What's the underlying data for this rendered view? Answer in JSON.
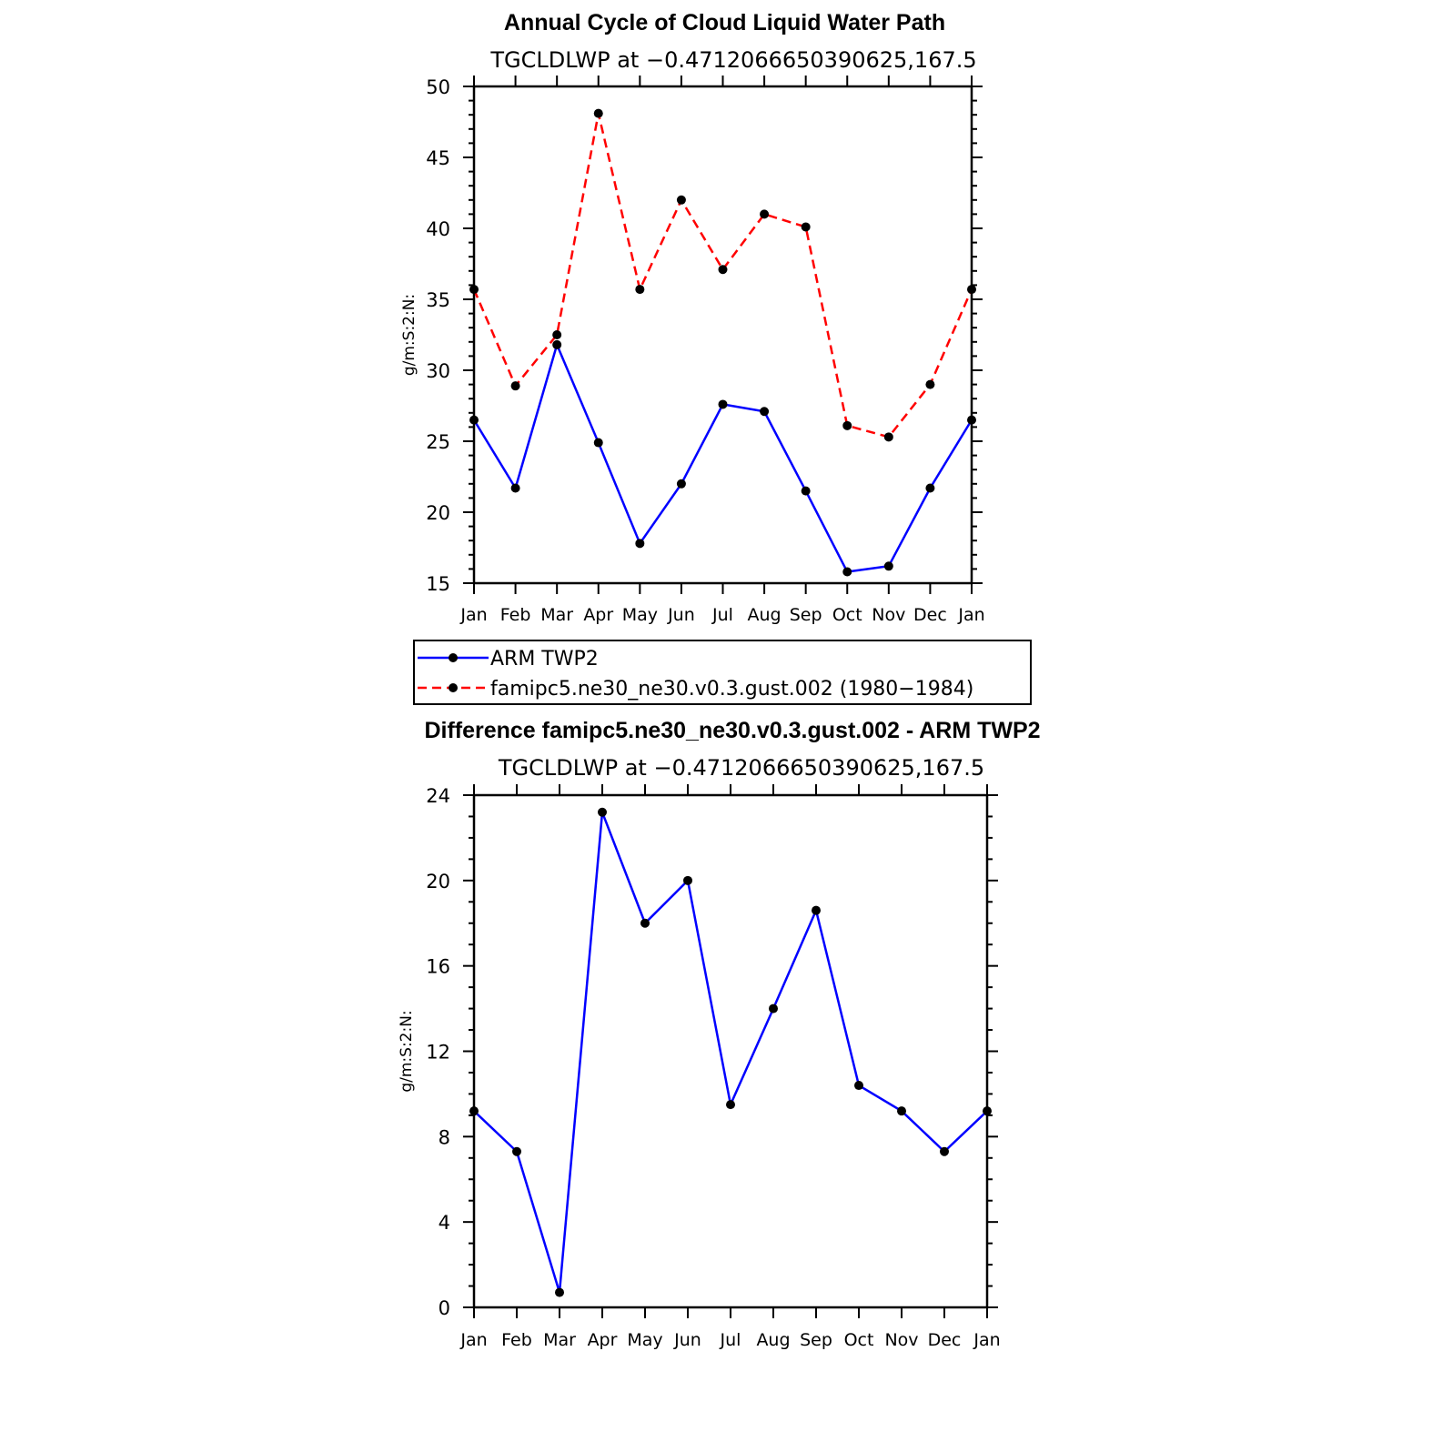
{
  "chart_data": [
    {
      "type": "line",
      "title": "Annual Cycle of Cloud Liquid Water Path",
      "subtitle": "TGCLDLWP at −0.4712066650390625,167.5",
      "ylabel": "g/m:S:2:N:",
      "xlabel": "",
      "ylim": [
        15,
        50
      ],
      "yticks": [
        15,
        20,
        25,
        30,
        35,
        40,
        45,
        50
      ],
      "categories": [
        "Jan",
        "Feb",
        "Mar",
        "Apr",
        "May",
        "Jun",
        "Jul",
        "Aug",
        "Sep",
        "Oct",
        "Nov",
        "Dec",
        "Jan"
      ],
      "series": [
        {
          "name": "ARM TWP2",
          "color": "#0000ff",
          "dash": "solid",
          "values": [
            26.5,
            21.7,
            31.8,
            24.9,
            17.8,
            22.0,
            27.6,
            27.1,
            21.5,
            15.8,
            16.2,
            21.7,
            26.5
          ]
        },
        {
          "name": "famipc5.ne30_ne30.v0.3.gust.002 (1980−1984)",
          "color": "#ff0000",
          "dash": "dashed",
          "values": [
            35.7,
            28.9,
            32.5,
            48.1,
            35.7,
            42.0,
            37.1,
            41.0,
            40.1,
            26.1,
            25.3,
            29.0,
            35.7
          ]
        }
      ],
      "legend": [
        "ARM TWP2",
        "famipc5.ne30_ne30.v0.3.gust.002 (1980−1984)"
      ]
    },
    {
      "type": "line",
      "title": "Difference famipc5.ne30_ne30.v0.3.gust.002 - ARM TWP2",
      "subtitle": "TGCLDLWP at −0.4712066650390625,167.5",
      "ylabel": "g/m:S:2:N:",
      "xlabel": "",
      "ylim": [
        0,
        24
      ],
      "yticks": [
        0,
        4,
        8,
        12,
        16,
        20,
        24
      ],
      "categories": [
        "Jan",
        "Feb",
        "Mar",
        "Apr",
        "May",
        "Jun",
        "Jul",
        "Aug",
        "Sep",
        "Oct",
        "Nov",
        "Dec",
        "Jan"
      ],
      "series": [
        {
          "name": "Difference",
          "color": "#0000ff",
          "dash": "solid",
          "values": [
            9.2,
            7.3,
            0.7,
            23.2,
            18.0,
            20.0,
            9.5,
            14.0,
            18.6,
            10.4,
            9.2,
            7.3,
            9.2
          ]
        }
      ]
    }
  ]
}
